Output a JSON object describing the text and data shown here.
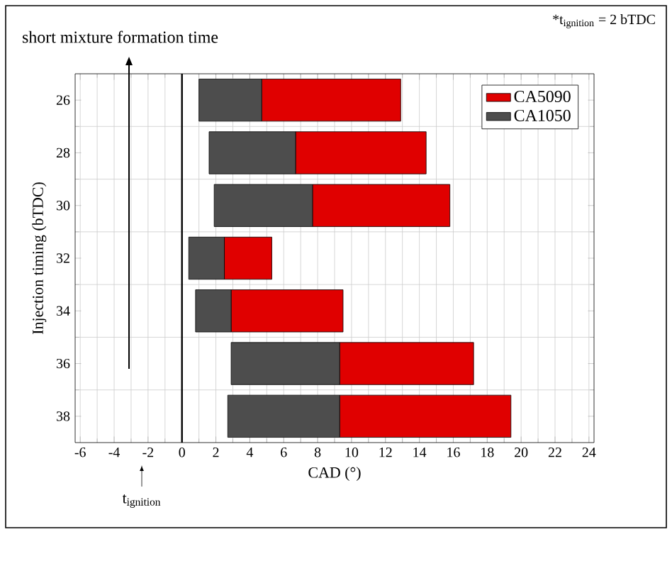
{
  "chart_data": {
    "type": "bar",
    "orientation": "horizontal",
    "xlabel": "CAD (°)",
    "ylabel": "Injection timing (bTDC)",
    "categories": [
      "26",
      "28",
      "30",
      "32",
      "34",
      "36",
      "38"
    ],
    "series": [
      {
        "name": "CA5090",
        "color": "#e00000",
        "base": [
          4.7,
          6.7,
          7.7,
          2.5,
          2.9,
          9.3,
          9.3
        ],
        "values": [
          8.2,
          7.7,
          8.1,
          2.8,
          6.6,
          7.9,
          10.1
        ]
      },
      {
        "name": "CA1050",
        "color": "#4d4d4d",
        "base": [
          1.0,
          1.6,
          1.9,
          0.4,
          0.8,
          2.9,
          2.7
        ],
        "values": [
          3.7,
          5.1,
          5.8,
          2.1,
          2.1,
          6.4,
          6.6
        ]
      }
    ],
    "xlim": [
      -6.3,
      24.3
    ],
    "xticks": [
      -6,
      -4,
      -2,
      0,
      2,
      4,
      6,
      8,
      10,
      12,
      14,
      16,
      18,
      20,
      22,
      24
    ],
    "grid": true,
    "legend": "top right",
    "ref_lines": [
      {
        "axis": "x",
        "value": 0
      }
    ],
    "annotations": [
      "short mixture formation time",
      "*t$_{ignition}$ = 2 bTDC",
      "t$_{ignition}$"
    ]
  }
}
